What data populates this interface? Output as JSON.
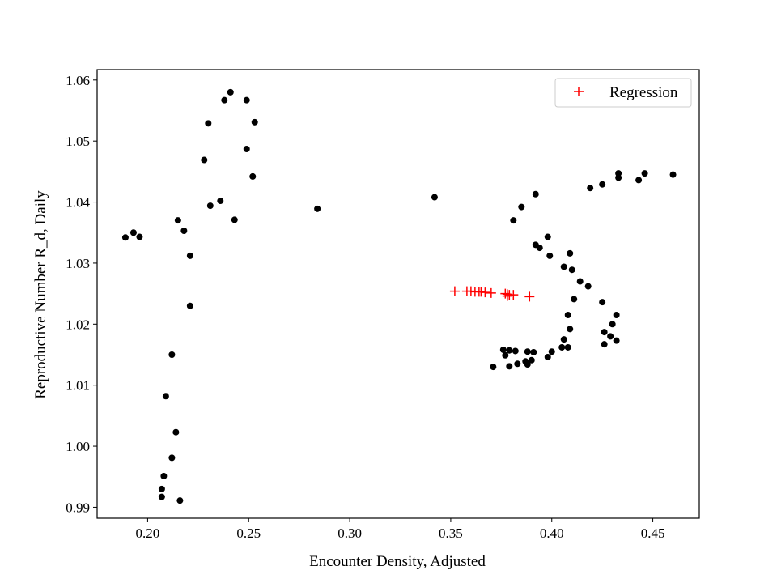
{
  "chart_data": {
    "type": "scatter",
    "title": "",
    "xlabel": "Encounter Density, Adjusted",
    "ylabel": "Reproductive Number R_d, Daily",
    "xlim": [
      0.175,
      0.473
    ],
    "ylim": [
      0.9882,
      1.0617
    ],
    "xticks": [
      0.2,
      0.25,
      0.3,
      0.35,
      0.4,
      0.45
    ],
    "xtick_labels": [
      "0.20",
      "0.25",
      "0.30",
      "0.35",
      "0.40",
      "0.45"
    ],
    "yticks": [
      0.99,
      1.0,
      1.01,
      1.02,
      1.03,
      1.04,
      1.05,
      1.06
    ],
    "ytick_labels": [
      "0.99",
      "1.00",
      "1.01",
      "1.02",
      "1.03",
      "1.04",
      "1.05",
      "1.06"
    ],
    "grid": false,
    "legend_position": "top-right",
    "series": [
      {
        "color": "#000000",
        "marker": "dot",
        "points": [
          [
            0.241,
            1.058
          ],
          [
            0.238,
            1.0567
          ],
          [
            0.249,
            1.0567
          ],
          [
            0.23,
            1.0529
          ],
          [
            0.253,
            1.0531
          ],
          [
            0.249,
            1.0487
          ],
          [
            0.228,
            1.0469
          ],
          [
            0.252,
            1.0442
          ],
          [
            0.236,
            1.0402
          ],
          [
            0.231,
            1.0394
          ],
          [
            0.243,
            1.0371
          ],
          [
            0.215,
            1.037
          ],
          [
            0.218,
            1.0353
          ],
          [
            0.189,
            1.0342
          ],
          [
            0.193,
            1.035
          ],
          [
            0.196,
            1.0343
          ],
          [
            0.221,
            1.0312
          ],
          [
            0.221,
            1.023
          ],
          [
            0.212,
            1.015
          ],
          [
            0.209,
            1.0082
          ],
          [
            0.214,
            1.0023
          ],
          [
            0.212,
            0.9981
          ],
          [
            0.208,
            0.9951
          ],
          [
            0.207,
            0.993
          ],
          [
            0.207,
            0.9917
          ],
          [
            0.216,
            0.9911
          ],
          [
            0.284,
            1.0389
          ],
          [
            0.342,
            1.0408
          ],
          [
            0.392,
            1.0413
          ],
          [
            0.385,
            1.0392
          ],
          [
            0.381,
            1.037
          ],
          [
            0.398,
            1.0343
          ],
          [
            0.392,
            1.033
          ],
          [
            0.394,
            1.0325
          ],
          [
            0.399,
            1.0312
          ],
          [
            0.409,
            1.0316
          ],
          [
            0.406,
            1.0294
          ],
          [
            0.41,
            1.0289
          ],
          [
            0.414,
            1.027
          ],
          [
            0.418,
            1.0262
          ],
          [
            0.411,
            1.0241
          ],
          [
            0.425,
            1.0236
          ],
          [
            0.408,
            1.0215
          ],
          [
            0.432,
            1.0215
          ],
          [
            0.43,
            1.02
          ],
          [
            0.409,
            1.0192
          ],
          [
            0.426,
            1.0187
          ],
          [
            0.429,
            1.018
          ],
          [
            0.406,
            1.0175
          ],
          [
            0.432,
            1.0173
          ],
          [
            0.426,
            1.0167
          ],
          [
            0.405,
            1.0162
          ],
          [
            0.408,
            1.0162
          ],
          [
            0.376,
            1.0158
          ],
          [
            0.379,
            1.0157
          ],
          [
            0.382,
            1.0156
          ],
          [
            0.388,
            1.0155
          ],
          [
            0.391,
            1.0154
          ],
          [
            0.4,
            1.0155
          ],
          [
            0.377,
            1.0149
          ],
          [
            0.398,
            1.0146
          ],
          [
            0.39,
            1.0141
          ],
          [
            0.387,
            1.0139
          ],
          [
            0.383,
            1.0135
          ],
          [
            0.388,
            1.0134
          ],
          [
            0.379,
            1.0131
          ],
          [
            0.371,
            1.013
          ],
          [
            0.419,
            1.0423
          ],
          [
            0.425,
            1.0429
          ],
          [
            0.433,
            1.044
          ],
          [
            0.433,
            1.0447
          ],
          [
            0.443,
            1.0436
          ],
          [
            0.446,
            1.0447
          ],
          [
            0.46,
            1.0445
          ]
        ]
      },
      {
        "name": "Regression",
        "color": "#ff0000",
        "marker": "plus",
        "points": [
          [
            0.352,
            1.0254
          ],
          [
            0.358,
            1.0254
          ],
          [
            0.36,
            1.0254
          ],
          [
            0.362,
            1.0253
          ],
          [
            0.364,
            1.0253
          ],
          [
            0.365,
            1.0253
          ],
          [
            0.367,
            1.0252
          ],
          [
            0.37,
            1.0251
          ],
          [
            0.377,
            1.025
          ],
          [
            0.378,
            1.0249
          ],
          [
            0.379,
            1.0248
          ],
          [
            0.378,
            1.0246
          ],
          [
            0.381,
            1.0248
          ],
          [
            0.389,
            1.0245
          ]
        ]
      }
    ]
  }
}
